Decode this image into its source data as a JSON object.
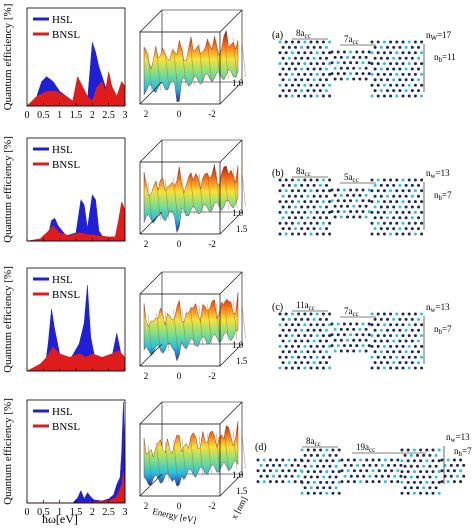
{
  "ylabel": "Quantum efficiency [%]",
  "xlabel": "ħω[eV]",
  "legend": [
    {
      "label": "HSL",
      "color": "#1f1fd6"
    },
    {
      "label": "BNSL",
      "color": "#e01b1b"
    }
  ],
  "surf_axis_labels": {
    "energy": "Energy [eV]",
    "x": "x [nm]"
  },
  "surf_ticks": {
    "energy": [
      "2",
      "0",
      "-2"
    ],
    "x_row1": [
      "1.0"
    ],
    "x_rows": [
      "1.0",
      "1.5"
    ]
  },
  "x_ticks_row1": [
    "0",
    "0.5",
    "1",
    "1.5",
    "2",
    "2.5",
    "3"
  ],
  "x_ticks": [
    "0",
    "0.5",
    "1",
    "1.5",
    "2",
    "2.5",
    "3"
  ],
  "panels": [
    {
      "letter": "(a)",
      "length_labels": [
        "8a",
        "7a"
      ],
      "length_sub": "cc",
      "nw": "n",
      "nw_sub": "W",
      "nw_val": "=17",
      "nb": "n",
      "nb_sub": "b",
      "nb_val": "=11"
    },
    {
      "letter": "(b)",
      "length_labels": [
        "8a",
        "5a"
      ],
      "length_sub": "cc",
      "nw": "n",
      "nw_sub": "w",
      "nw_val": "=13",
      "nb": "n",
      "nb_sub": "b",
      "nb_val": "=7"
    },
    {
      "letter": "(c)",
      "length_labels": [
        "11a",
        "7a"
      ],
      "length_sub": "cc",
      "nw": "n",
      "nw_sub": "w",
      "nw_val": "=13",
      "nb": "n",
      "nb_sub": "b",
      "nb_val": "=7"
    },
    {
      "letter": "(d)",
      "length_labels": [
        "8a",
        "19a"
      ],
      "length_sub": "cc",
      "nw": "n",
      "nw_sub": "w",
      "nw_val": "=13",
      "nb": "n",
      "nb_sub": "b",
      "nb_val": "=7"
    }
  ],
  "chart_data": [
    {
      "type": "area",
      "xlim": [
        0,
        3
      ],
      "ylim": [
        0,
        20
      ],
      "series": [
        {
          "name": "HSL",
          "x": [
            0,
            0.3,
            0.45,
            0.6,
            0.8,
            1.0,
            1.2,
            1.4,
            1.5,
            1.6,
            1.75,
            1.85,
            1.95,
            2.0,
            2.1,
            2.2,
            2.3,
            2.45,
            2.6,
            2.8,
            3.0
          ],
          "values": [
            0,
            2,
            5,
            6,
            5,
            3,
            2,
            1,
            2,
            4,
            2,
            1,
            9,
            13,
            11,
            8,
            6,
            3,
            2,
            1,
            1
          ]
        },
        {
          "name": "BNSL",
          "x": [
            0,
            0.3,
            0.6,
            0.9,
            1.2,
            1.4,
            1.55,
            1.7,
            1.85,
            2.0,
            2.15,
            2.3,
            2.4,
            2.5,
            2.6,
            2.75,
            2.9,
            3.0
          ],
          "values": [
            0,
            2,
            3,
            3,
            2,
            1,
            6,
            4,
            2,
            1,
            4,
            5,
            3,
            7,
            4,
            2,
            5,
            4
          ]
        }
      ]
    },
    {
      "type": "area",
      "xlim": [
        0,
        3
      ],
      "ylim": [
        0,
        100
      ],
      "series": [
        {
          "name": "HSL",
          "x": [
            0,
            0.5,
            0.65,
            0.75,
            0.85,
            0.95,
            1.2,
            1.5,
            1.65,
            1.75,
            1.85,
            2.0,
            2.1,
            2.2,
            2.3,
            2.6,
            3.0
          ],
          "values": [
            0,
            0,
            5,
            20,
            22,
            15,
            5,
            8,
            40,
            35,
            12,
            45,
            40,
            10,
            5,
            2,
            0
          ]
        },
        {
          "name": "BNSL",
          "x": [
            0,
            0.4,
            0.6,
            0.8,
            1.0,
            1.3,
            1.6,
            1.9,
            2.2,
            2.5,
            2.7,
            2.8,
            2.9,
            3.0
          ],
          "values": [
            0,
            2,
            8,
            15,
            8,
            5,
            8,
            6,
            5,
            4,
            4,
            20,
            38,
            30
          ]
        }
      ]
    },
    {
      "type": "area",
      "xlim": [
        0,
        3
      ],
      "ylim": [
        0,
        30
      ],
      "series": [
        {
          "name": "HSL",
          "x": [
            0,
            0.55,
            0.65,
            0.75,
            0.85,
            1.0,
            1.3,
            1.6,
            1.75,
            1.85,
            1.95,
            2.05,
            2.2,
            2.4,
            2.6,
            2.75,
            2.9,
            3.0
          ],
          "values": [
            0,
            1,
            8,
            18,
            12,
            5,
            3,
            8,
            14,
            25,
            10,
            5,
            3,
            2,
            4,
            11,
            4,
            2
          ]
        },
        {
          "name": "BNSL",
          "x": [
            0,
            0.4,
            0.6,
            0.8,
            1.0,
            1.3,
            1.6,
            1.8,
            2.0,
            2.3,
            2.6,
            2.8,
            3.0
          ],
          "values": [
            0,
            2,
            4,
            7,
            5,
            4,
            5,
            4,
            5,
            4,
            5,
            6,
            4
          ]
        }
      ]
    },
    {
      "type": "area",
      "xlim": [
        0,
        3
      ],
      "ylim": [
        0,
        100
      ],
      "series": [
        {
          "name": "HSL",
          "x": [
            0,
            1.4,
            1.55,
            1.65,
            1.75,
            1.85,
            1.95,
            2.05,
            2.3,
            2.5,
            2.65,
            2.75,
            2.85,
            2.9,
            2.95,
            3.0
          ],
          "values": [
            0,
            0,
            5,
            12,
            4,
            10,
            6,
            3,
            2,
            4,
            8,
            18,
            25,
            50,
            98,
            40
          ]
        },
        {
          "name": "BNSL",
          "x": [
            0,
            1.5,
            2.0,
            2.5,
            2.7,
            2.8,
            2.9,
            2.95,
            3.0
          ],
          "values": [
            0,
            0,
            1,
            2,
            5,
            10,
            18,
            30,
            10
          ]
        }
      ]
    }
  ]
}
